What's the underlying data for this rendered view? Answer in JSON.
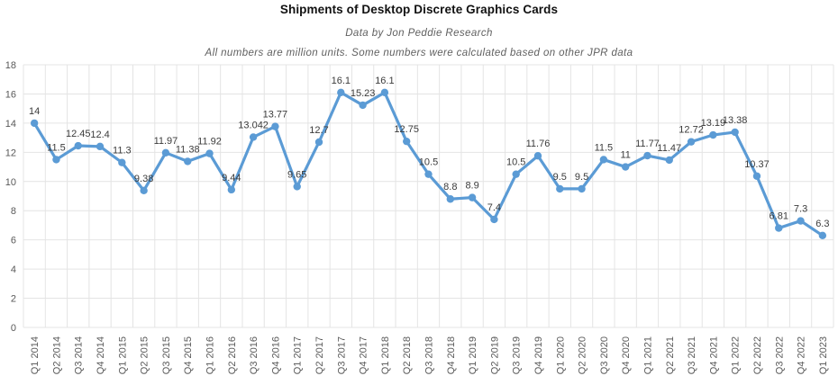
{
  "header": {
    "title": "Shipments of Desktop Discrete Graphics Cards",
    "subtitle": "Data by Jon Peddie Research",
    "note": "All numbers are million units. Some numbers were calculated based on other JPR data"
  },
  "colors": {
    "line": "#5B9BD5",
    "marker": "#5B9BD5",
    "grid": "#e4e4e4",
    "axis_label": "#595959",
    "data_label": "#3b3b3b",
    "title": "#111111",
    "subtitle": "#606060"
  },
  "chart_data": {
    "type": "line",
    "title": "Shipments of Desktop Discrete Graphics Cards",
    "subtitle": "Data by Jon Peddie Research",
    "note": "All numbers are million units. Some numbers were calculated based on other JPR data",
    "xlabel": "",
    "ylabel": "",
    "units": "million units",
    "ylim": [
      0,
      18
    ],
    "yticks": [
      0,
      2,
      4,
      6,
      8,
      10,
      12,
      14,
      16,
      18
    ],
    "grid": true,
    "legend_position": "none",
    "marker": "circle",
    "categories": [
      "Q1 2014",
      "Q2 2014",
      "Q3 2014",
      "Q4 2014",
      "Q1 2015",
      "Q2 2015",
      "Q3 2015",
      "Q4 2015",
      "Q1 2016",
      "Q2 2016",
      "Q3 2016",
      "Q4 2016",
      "Q1 2017",
      "Q2 2017",
      "Q3 2017",
      "Q4 2017",
      "Q1 2018",
      "Q2 2018",
      "Q3 2018",
      "Q4 2018",
      "Q1 2019",
      "Q2 2019",
      "Q3 2019",
      "Q4 2019",
      "Q1 2020",
      "Q2 2020",
      "Q3 2020",
      "Q4 2020",
      "Q1 2021",
      "Q2 2021",
      "Q3 2021",
      "Q4 2021",
      "Q1 2022",
      "Q2 2022",
      "Q3 2022",
      "Q4 2022",
      "Q1 2023"
    ],
    "values": [
      14,
      11.5,
      12.45,
      12.4,
      11.3,
      9.38,
      11.97,
      11.38,
      11.92,
      9.44,
      13.042,
      13.77,
      9.65,
      12.7,
      16.1,
      15.23,
      16.1,
      12.75,
      10.5,
      8.8,
      8.9,
      7.4,
      10.5,
      11.76,
      9.5,
      9.5,
      11.5,
      11,
      11.77,
      11.47,
      12.72,
      13.19,
      13.38,
      10.37,
      6.81,
      7.3,
      6.3
    ],
    "labels": [
      "14",
      "11.5",
      "12.45",
      "12.4",
      "11.3",
      "9.38",
      "11.97",
      "11.38",
      "11.92",
      "9.44",
      "13.042",
      "13.77",
      "9.65",
      "12.7",
      "16.1",
      "15.23",
      "16.1",
      "12.75",
      "10.5",
      "8.8",
      "8.9",
      "7.4",
      "10.5",
      "11.76",
      "9.5",
      "9.5",
      "11.5",
      "11",
      "11.77",
      "11.47",
      "12.72",
      "13.19",
      "13.38",
      "10.37",
      "6.81",
      "7.3",
      "6.3"
    ]
  }
}
